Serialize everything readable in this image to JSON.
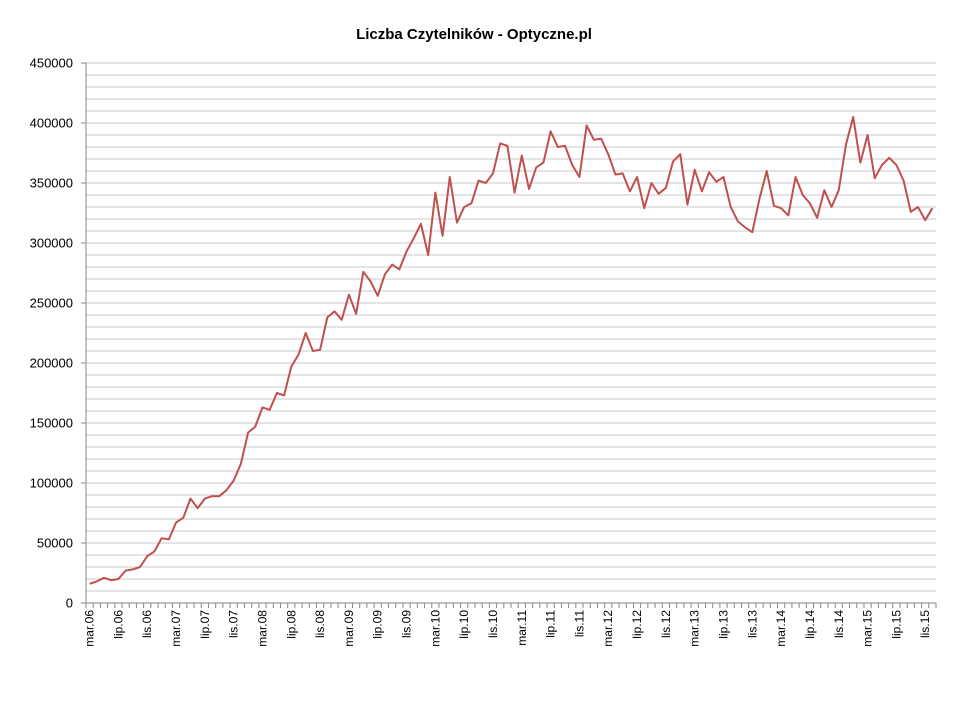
{
  "chart_data": {
    "type": "line",
    "title": "Liczba Czytelników - Optyczne.pl",
    "xlabel": "",
    "ylabel": "",
    "ylim": [
      0,
      450000
    ],
    "y_ticks": [
      0,
      50000,
      100000,
      150000,
      200000,
      250000,
      300000,
      350000,
      400000,
      450000
    ],
    "y_tick_labels": [
      "0",
      "50000",
      "100000",
      "150000",
      "200000",
      "250000",
      "300000",
      "350000",
      "400000",
      "450000"
    ],
    "grid": "horizontal, minor every 10000",
    "legend": "none",
    "line_color": "#c0504d",
    "x_tick_labels": [
      "mar.06",
      "lip.06",
      "lis.06",
      "mar.07",
      "lip.07",
      "lis.07",
      "mar.08",
      "lip.08",
      "lis.08",
      "mar.09",
      "lip.09",
      "lis.09",
      "mar.10",
      "lip.10",
      "lis.10",
      "mar.11",
      "lip.11",
      "lis.11",
      "mar.12",
      "lip.12",
      "lis.12",
      "mar.13",
      "lip.13",
      "lis.13",
      "mar.14",
      "lip.14",
      "lis.14",
      "mar.15",
      "lip.15",
      "lis.15"
    ],
    "series": [
      {
        "values": [
          16000,
          18000,
          21000,
          19000,
          20000,
          27000,
          28000,
          30000,
          39000,
          43000,
          54000,
          53000,
          67000,
          71000,
          87000,
          79000,
          87000,
          89000,
          89000,
          94000,
          102000,
          116000,
          142000,
          147000,
          163000,
          161000,
          175000,
          173000,
          197000,
          207000,
          225000,
          210000,
          211000,
          238000,
          243000,
          236000,
          257000,
          241000,
          276000,
          268000,
          256000,
          274000,
          282000,
          278000,
          293000,
          304000,
          316000,
          290000,
          342000,
          306000,
          355000,
          317000,
          330000,
          333000,
          352000,
          350000,
          358000,
          383000,
          381000,
          342000,
          373000,
          345000,
          363000,
          367000,
          393000,
          380000,
          381000,
          365000,
          355000,
          398000,
          386000,
          387000,
          374000,
          357000,
          358000,
          343000,
          355000,
          329000,
          350000,
          341000,
          346000,
          368000,
          374000,
          332000,
          361000,
          343000,
          359000,
          351000,
          355000,
          330000,
          318000,
          313000,
          309000,
          337000,
          360000,
          331000,
          329000,
          323000,
          355000,
          340000,
          333000,
          321000,
          344000,
          330000,
          344000,
          382000,
          405000,
          367000,
          390000,
          354000,
          365000,
          371000,
          365000,
          352000,
          326000,
          330000,
          319000,
          329000
        ]
      }
    ]
  }
}
